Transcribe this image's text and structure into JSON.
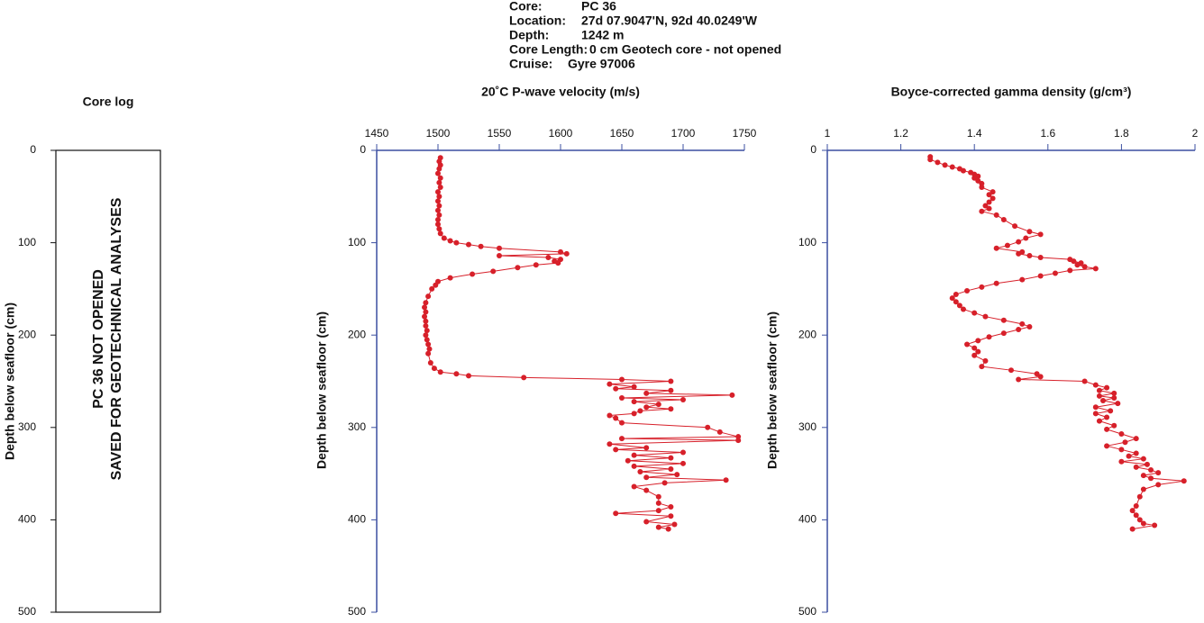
{
  "header": [
    {
      "key": "Core:",
      "value": "PC 36"
    },
    {
      "key": "Location:",
      "value": "27d 07.9047'N, 92d 40.0249'W"
    },
    {
      "key": "Depth:",
      "value": "1242 m"
    },
    {
      "key": "Core Length:",
      "value": "0 cm Geotech core - not opened"
    },
    {
      "key": "Cruise:",
      "value": "Gyre 97006"
    }
  ],
  "chart_data": [
    {
      "type": "core-log",
      "title": "Core log",
      "ylabel": "Depth below seafloor (cm)",
      "ylim": [
        0,
        500
      ],
      "yticks": [
        0,
        100,
        200,
        300,
        400,
        500
      ],
      "y_inverted": true,
      "labels": [
        "PC 36 NOT OPENED",
        "SAVED FOR GEOTECHNICAL ANALYSES"
      ]
    },
    {
      "type": "line",
      "title": "20˚C P-wave velocity (m/s)",
      "ylabel": "Depth below seafloor (cm)",
      "xlim": [
        1450,
        1750
      ],
      "xticks": [
        1450,
        1500,
        1550,
        1600,
        1650,
        1700,
        1750
      ],
      "ylim": [
        0,
        500
      ],
      "yticks": [
        0,
        100,
        200,
        300,
        400,
        500
      ],
      "y_inverted": true,
      "color": "#d7202a",
      "axis_color": "#3b4fa0",
      "depth": [
        8,
        12,
        16,
        20,
        25,
        30,
        35,
        40,
        45,
        50,
        55,
        60,
        65,
        70,
        75,
        80,
        85,
        90,
        95,
        98,
        100,
        102,
        104,
        106,
        110,
        112,
        114,
        116,
        118,
        120,
        122,
        124,
        127,
        131,
        134,
        138,
        142,
        146,
        150,
        158,
        165,
        170,
        175,
        180,
        185,
        190,
        195,
        200,
        205,
        210,
        215,
        220,
        230,
        236,
        240,
        242,
        244,
        246,
        248,
        250,
        253,
        256,
        258,
        260,
        263,
        265,
        268,
        270,
        272,
        275,
        278,
        280,
        282,
        285,
        287,
        290,
        295,
        300,
        305,
        310,
        312,
        314,
        318,
        322,
        324,
        327,
        330,
        333,
        336,
        339,
        342,
        345,
        348,
        351,
        354,
        357,
        360,
        364,
        368,
        375,
        382,
        386,
        390,
        393,
        396,
        402,
        405,
        408,
        410
      ],
      "values": [
        1502,
        1501,
        1502,
        1501,
        1500,
        1502,
        1501,
        1502,
        1500,
        1501,
        1500,
        1501,
        1500,
        1501,
        1500,
        1500,
        1501,
        1502,
        1505,
        1510,
        1515,
        1525,
        1535,
        1550,
        1600,
        1605,
        1550,
        1590,
        1600,
        1595,
        1598,
        1580,
        1565,
        1545,
        1528,
        1510,
        1500,
        1498,
        1495,
        1492,
        1490,
        1489,
        1490,
        1489,
        1490,
        1490,
        1491,
        1490,
        1491,
        1492,
        1493,
        1492,
        1494,
        1497,
        1502,
        1515,
        1525,
        1570,
        1650,
        1690,
        1640,
        1660,
        1645,
        1690,
        1670,
        1740,
        1650,
        1700,
        1660,
        1680,
        1670,
        1690,
        1665,
        1660,
        1640,
        1645,
        1650,
        1720,
        1730,
        1745,
        1650,
        1745,
        1640,
        1670,
        1645,
        1700,
        1660,
        1690,
        1655,
        1700,
        1660,
        1690,
        1665,
        1695,
        1670,
        1735,
        1685,
        1660,
        1670,
        1680,
        1680,
        1690,
        1680,
        1645,
        1690,
        1670,
        1693,
        1680,
        1688
      ]
    },
    {
      "type": "line",
      "title": "Boyce-corrected gamma density (g/cm³)",
      "ylabel": "Depth below seafloor (cm)",
      "xlim": [
        1,
        2
      ],
      "xticks": [
        1,
        1.2,
        1.4,
        1.6,
        1.8,
        2
      ],
      "ylim": [
        0,
        500
      ],
      "yticks": [
        0,
        100,
        200,
        300,
        400,
        500
      ],
      "y_inverted": true,
      "color": "#d7202a",
      "axis_color": "#3b4fa0",
      "depth": [
        7,
        10,
        13,
        16,
        18,
        20,
        22,
        24,
        26,
        28,
        30,
        33,
        36,
        40,
        45,
        48,
        52,
        56,
        60,
        63,
        66,
        70,
        75,
        82,
        88,
        91,
        95,
        99,
        103,
        106,
        110,
        112,
        114,
        116,
        118,
        120,
        122,
        124,
        126,
        128,
        130,
        133,
        136,
        140,
        144,
        148,
        152,
        156,
        160,
        164,
        168,
        172,
        176,
        180,
        184,
        188,
        191,
        194,
        198,
        202,
        206,
        210,
        214,
        218,
        222,
        228,
        234,
        238,
        242,
        245,
        248,
        250,
        254,
        257,
        260,
        263,
        266,
        268,
        271,
        274,
        278,
        282,
        285,
        289,
        293,
        298,
        302,
        307,
        312,
        316,
        320,
        324,
        328,
        331,
        334,
        337,
        340,
        343,
        346,
        349,
        352,
        355,
        358,
        362,
        367,
        375,
        385,
        390,
        395,
        400,
        404,
        406,
        410
      ],
      "values": [
        1.28,
        1.28,
        1.3,
        1.32,
        1.34,
        1.36,
        1.37,
        1.39,
        1.4,
        1.41,
        1.4,
        1.41,
        1.42,
        1.42,
        1.45,
        1.44,
        1.45,
        1.44,
        1.43,
        1.44,
        1.42,
        1.46,
        1.48,
        1.51,
        1.55,
        1.58,
        1.54,
        1.52,
        1.49,
        1.46,
        1.53,
        1.52,
        1.55,
        1.58,
        1.66,
        1.67,
        1.69,
        1.68,
        1.7,
        1.73,
        1.66,
        1.62,
        1.58,
        1.53,
        1.46,
        1.42,
        1.38,
        1.35,
        1.34,
        1.35,
        1.36,
        1.37,
        1.4,
        1.43,
        1.48,
        1.53,
        1.55,
        1.52,
        1.48,
        1.44,
        1.41,
        1.38,
        1.4,
        1.41,
        1.4,
        1.43,
        1.42,
        1.5,
        1.57,
        1.58,
        1.52,
        1.7,
        1.73,
        1.76,
        1.74,
        1.78,
        1.74,
        1.78,
        1.75,
        1.79,
        1.73,
        1.77,
        1.73,
        1.76,
        1.74,
        1.78,
        1.76,
        1.8,
        1.84,
        1.81,
        1.76,
        1.8,
        1.84,
        1.82,
        1.86,
        1.8,
        1.87,
        1.84,
        1.88,
        1.9,
        1.86,
        1.88,
        1.97,
        1.9,
        1.86,
        1.85,
        1.84,
        1.83,
        1.84,
        1.85,
        1.86,
        1.89,
        1.83
      ]
    }
  ]
}
